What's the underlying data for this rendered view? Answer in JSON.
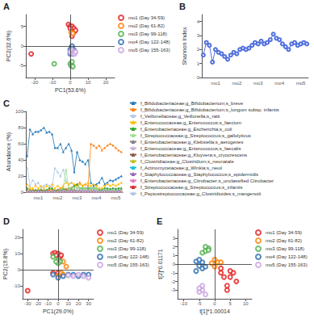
{
  "chart_data": [
    {
      "type": "scatter",
      "title": "A",
      "xlabel": "PC1(53.6%)",
      "ylabel": "PC2(32.6%)",
      "marker": "circle",
      "grid": false,
      "legend": "upper right",
      "xlim": [
        -25,
        25
      ],
      "ylim": [
        -8,
        8
      ],
      "xticks": [
        -20,
        -10,
        0,
        10,
        20
      ],
      "yticks": [
        -5,
        0,
        5
      ],
      "series": [
        {
          "name": "mo1 (Day 34-59)",
          "color": "#e41a1c",
          "x": [
            -22,
            -1,
            0,
            1,
            2,
            1,
            2,
            3,
            0,
            1
          ],
          "y": [
            -2,
            5.5,
            5,
            5,
            4.5,
            3.5,
            3.5,
            4,
            4.5,
            2.5
          ]
        },
        {
          "name": "mo2 (Day 61-82)",
          "color": "#ff7f00",
          "x": [
            0.5,
            1.5
          ],
          "y": [
            3.5,
            3.2
          ]
        },
        {
          "name": "mo3 (Day 99-118)",
          "color": "#4daf4a",
          "x": [
            -9,
            0,
            1,
            0.5,
            1.5
          ],
          "y": [
            -4.5,
            -4.5,
            -4,
            -5,
            -5.2
          ]
        },
        {
          "name": "mo4 (Day 122-148)",
          "color": "#2b6cb0",
          "x": [
            0,
            1,
            1,
            2,
            0,
            0.5,
            1,
            1.5,
            2
          ],
          "y": [
            -1,
            -1.5,
            -0.5,
            -1,
            -2,
            -0.5,
            0,
            -2,
            -1.5
          ]
        },
        {
          "name": "mo5 (Day 155-163)",
          "color": "#c8a0e0",
          "x": [
            0,
            1,
            2,
            1.5,
            2.5,
            3
          ],
          "y": [
            -1.5,
            -1,
            -1.5,
            -2,
            -2,
            -1.5
          ]
        }
      ]
    },
    {
      "type": "line",
      "title": "B",
      "ylabel": "Shannon Index",
      "marker": "circle",
      "grid": false,
      "categories": [
        null,
        null,
        null,
        null,
        "mo1",
        null,
        null,
        null,
        null,
        null,
        null,
        "mo2",
        null,
        null,
        null,
        null,
        null,
        null,
        "mo3",
        null,
        null,
        null,
        null,
        null,
        null,
        "mo4",
        null,
        null,
        null,
        null,
        null,
        null,
        "mo5",
        null,
        null
      ],
      "values": [
        1.6,
        2.5,
        2.3,
        1.1,
        2.0,
        1.8,
        1.7,
        1.5,
        1.3,
        1.6,
        1.8,
        1.7,
        2.0,
        2.1,
        2.0,
        2.1,
        2.3,
        2.5,
        2.4,
        2.6,
        2.4,
        2.5,
        2.7,
        3.1,
        2.8,
        2.7,
        2.4,
        2.2,
        2.0,
        2.4,
        2.5,
        2.3,
        2.4,
        2.5,
        2.4
      ],
      "ylim": [
        0,
        4.5
      ],
      "yticks": [
        0,
        1,
        2,
        3,
        4
      ]
    },
    {
      "type": "line",
      "title": "C",
      "ylabel": "Abundance (%)",
      "marker": "triangle",
      "grid": false,
      "legend": "upper right",
      "categories": [
        null,
        null,
        null,
        null,
        "mo1",
        null,
        null,
        null,
        null,
        null,
        null,
        "mo2",
        null,
        null,
        null,
        null,
        null,
        null,
        "mo3",
        null,
        null,
        null,
        null,
        null,
        null,
        "mo4",
        null,
        null,
        null,
        null,
        null,
        null,
        "mo5",
        null,
        null
      ],
      "ylim": [
        0,
        100
      ],
      "yticks": [
        0,
        20,
        40,
        60,
        80,
        100
      ],
      "series": [
        {
          "name": "f_Bifidobacteriaceae;g_Bifidobacterium;s_breve",
          "color": "#1f77b4",
          "values": [
            45,
            78,
            72,
            75,
            75,
            77,
            80,
            74,
            75,
            72,
            55,
            55,
            60,
            50,
            55,
            60,
            52,
            25,
            50,
            40,
            38,
            35,
            40,
            12,
            8,
            10,
            12,
            18,
            10,
            12,
            15,
            14,
            16,
            18,
            20
          ]
        },
        {
          "name": "f_Bifidobacteriaceae;g_Bifidobacterium;s_longum subsp. infantis",
          "color": "#ff7f0e",
          "values": [
            5,
            3,
            3,
            2,
            3,
            3,
            2,
            2,
            3,
            3,
            2,
            3,
            5,
            5,
            4,
            5,
            6,
            8,
            10,
            12,
            8,
            10,
            8,
            60,
            58,
            55,
            58,
            52,
            55,
            58,
            60,
            58,
            55,
            52,
            50
          ]
        },
        {
          "name": "f_Veillonellaceae;g_Veillonella;s_ratti",
          "color": "#aec7e8",
          "values": [
            30,
            8,
            15,
            10,
            12,
            5,
            8,
            10,
            8,
            6,
            30,
            25,
            20,
            28,
            15,
            10,
            12,
            8,
            6,
            5,
            5,
            6,
            5,
            5,
            4,
            5,
            3,
            2,
            5,
            3,
            2,
            5,
            4,
            3,
            5
          ]
        },
        {
          "name": "f_Enterococcaceae;g_Enterococcus;s_faecium",
          "color": "#ffbb00",
          "values": [
            10,
            5,
            5,
            8,
            5,
            8,
            5,
            8,
            5,
            10,
            5,
            8,
            5,
            8,
            12,
            10,
            12,
            10,
            8,
            10,
            8,
            10,
            12,
            8,
            10,
            8,
            5,
            5,
            8,
            10,
            8,
            10,
            8,
            10,
            12
          ]
        },
        {
          "name": "f_Enterobacteriaceae;g_Escherichia;s_coli",
          "color": "#2ca02c",
          "values": [
            5,
            2,
            2,
            3,
            2,
            3,
            2,
            3,
            5,
            5,
            2,
            3,
            3,
            5,
            3,
            5,
            5,
            8,
            10,
            5,
            5,
            5,
            5,
            5,
            5,
            5,
            3,
            3,
            5,
            5,
            4,
            5,
            4,
            5,
            5
          ]
        },
        {
          "name": "f_Streptococcaceae;g_Streptococcus;s_gallolyticus",
          "color": "#98df8a",
          "values": [
            2,
            1,
            1,
            1,
            1,
            1,
            1,
            1,
            1,
            2,
            1,
            2,
            3,
            5,
            28,
            5,
            6,
            5,
            5,
            5,
            6,
            5,
            3,
            5,
            5,
            5,
            2,
            2,
            3,
            3,
            2,
            2,
            2,
            2,
            2
          ]
        },
        {
          "name": "f_Enterobacteriaceae;g_Klebsiella;s_aerogenes",
          "color": "#7f7f7f",
          "values": [
            2,
            1,
            1,
            1,
            1,
            1,
            1,
            1,
            1,
            2,
            1,
            2,
            2,
            3,
            3,
            2,
            3,
            3,
            2,
            2,
            2,
            2,
            2,
            2,
            2,
            2,
            1,
            1,
            2,
            2,
            1,
            1,
            1,
            2,
            2
          ]
        },
        {
          "name": "f_Enterococcaceae;g_Enterococcus;s_faecalis",
          "color": "#c5b0d5",
          "values": [
            1,
            1,
            1,
            1,
            1,
            1,
            1,
            1,
            1,
            1,
            1,
            1,
            2,
            2,
            2,
            2,
            2,
            2,
            2,
            2,
            2,
            2,
            2,
            2,
            2,
            2,
            1,
            1,
            2,
            1,
            1,
            1,
            1,
            1,
            2
          ]
        },
        {
          "name": "f_Enterobacteriaceae;g_Kluyvera;s_cryocrescens",
          "color": "#8c564b",
          "values": [
            1,
            1,
            1,
            1,
            1,
            1,
            1,
            1,
            1,
            1,
            1,
            1,
            1,
            1,
            1,
            1,
            1,
            1,
            1,
            1,
            1,
            1,
            1,
            1,
            1,
            1,
            1,
            1,
            1,
            1,
            1,
            1,
            1,
            1,
            1
          ]
        },
        {
          "name": "f_Clostridiaceae;g_Clostridium;s_neonatale",
          "color": "#bcbd22",
          "values": [
            1,
            1,
            1,
            1,
            1,
            1,
            1,
            1,
            1,
            1,
            1,
            1,
            1,
            1,
            1,
            1,
            1,
            1,
            1,
            1,
            1,
            1,
            1,
            2,
            1,
            1,
            1,
            1,
            1,
            1,
            1,
            1,
            1,
            1,
            1
          ]
        },
        {
          "name": "f_Actinomycetaceae;g_Winkia;s_neuii",
          "color": "#17becf",
          "values": [
            1,
            1,
            1,
            1,
            1,
            1,
            1,
            1,
            1,
            1,
            1,
            1,
            1,
            1,
            1,
            1,
            1,
            1,
            1,
            1,
            1,
            1,
            1,
            1,
            1,
            1,
            1,
            1,
            1,
            1,
            1,
            1,
            1,
            1,
            1
          ]
        },
        {
          "name": "f_Staphylococcaceae;g_Staphylococcus;s_epidermidis",
          "color": "#9467bd",
          "values": [
            1,
            1,
            1,
            1,
            1,
            1,
            1,
            1,
            1,
            1,
            1,
            1,
            1,
            1,
            1,
            1,
            1,
            1,
            1,
            1,
            1,
            1,
            1,
            1,
            1,
            1,
            1,
            1,
            1,
            1,
            1,
            1,
            1,
            1,
            1
          ]
        },
        {
          "name": "f_Enterobacteriaceae;g_Citrobacter;s_unclassified Citrobacter",
          "color": "#e377c2",
          "values": [
            1,
            1,
            1,
            1,
            1,
            1,
            1,
            1,
            1,
            1,
            1,
            1,
            1,
            1,
            1,
            1,
            1,
            1,
            1,
            1,
            1,
            1,
            1,
            1,
            1,
            1,
            1,
            1,
            1,
            1,
            1,
            1,
            1,
            1,
            1
          ]
        },
        {
          "name": "f_Streptococcaceae;g_Streptococcus;s_infantis",
          "color": "#d62728",
          "values": [
            1,
            1,
            1,
            1,
            1,
            1,
            1,
            1,
            1,
            1,
            1,
            1,
            1,
            1,
            1,
            1,
            1,
            1,
            1,
            1,
            1,
            1,
            1,
            1,
            1,
            1,
            1,
            1,
            1,
            1,
            1,
            1,
            1,
            1,
            1
          ]
        },
        {
          "name": "f_Peptostreptococcaceae;g_Clostridioides;s_mangenotii",
          "color": "#b0c4de",
          "values": [
            1,
            1,
            1,
            1,
            1,
            1,
            1,
            1,
            1,
            1,
            1,
            1,
            1,
            1,
            1,
            1,
            1,
            1,
            1,
            1,
            1,
            1,
            1,
            1,
            1,
            1,
            1,
            1,
            1,
            1,
            1,
            1,
            1,
            1,
            1
          ]
        }
      ]
    },
    {
      "type": "scatter",
      "title": "D",
      "xlabel": "PC1(29.0%)",
      "ylabel": "PC2(19.8%)",
      "marker": "circle",
      "grid": false,
      "legend": "upper right",
      "xlim": [
        -35,
        35
      ],
      "ylim": [
        -18,
        25
      ],
      "xticks": [
        -30,
        -20,
        -10,
        0,
        10,
        20,
        30
      ],
      "yticks": [
        -10,
        0,
        10,
        20
      ],
      "series": [
        {
          "name": "mo1 (Day 34-59)",
          "color": "#e41a1c",
          "x": [
            -30,
            -5,
            -3,
            0,
            2,
            -2,
            3,
            -5,
            0,
            2
          ],
          "y": [
            -13,
            10,
            10.5,
            10,
            8,
            9,
            9,
            -2,
            -2,
            -3
          ]
        },
        {
          "name": "mo2 (Day 61-82)",
          "color": "#ff7f00",
          "x": [
            5,
            8,
            3,
            5,
            0
          ],
          "y": [
            5,
            2,
            -2,
            -3,
            -4
          ]
        },
        {
          "name": "mo3 (Day 99-118)",
          "color": "#4daf4a",
          "x": [
            -5,
            0,
            2,
            0,
            -2
          ],
          "y": [
            8,
            6,
            5,
            4,
            5
          ]
        },
        {
          "name": "mo4 (Day 122-148)",
          "color": "#2b6cb0",
          "x": [
            -5,
            0,
            5,
            10,
            15,
            20,
            25,
            30
          ],
          "y": [
            -3,
            -5,
            -4,
            -3,
            -3,
            -4,
            -3,
            -3
          ]
        },
        {
          "name": "mo5 (Day 155-163)",
          "color": "#c8a0e0",
          "x": [
            10,
            15,
            20,
            25,
            30
          ],
          "y": [
            -3.5,
            -4,
            -3,
            -4,
            -5
          ]
        }
      ]
    },
    {
      "type": "scatter",
      "title": "E",
      "xlabel": "t[1]*1.00014",
      "ylabel": "t[2]*0.01171",
      "marker": "circle",
      "grid": false,
      "legend": "upper right",
      "xlim": [
        -12,
        12
      ],
      "ylim": [
        -4,
        4
      ],
      "xticks": [
        -10,
        -5,
        0,
        5,
        10
      ],
      "yticks": [
        -3,
        -2,
        -1,
        0,
        1,
        2,
        3
      ],
      "series": [
        {
          "name": "mo1 (Day 34-59)",
          "color": "#e41a1c",
          "x": [
            2,
            5,
            4,
            6,
            7,
            3,
            2,
            5,
            4
          ],
          "y": [
            -1,
            -1.5,
            -2.5,
            -1,
            -2,
            -1.5,
            -0.5,
            -0.8,
            -3
          ]
        },
        {
          "name": "mo2 (Day 61-82)",
          "color": "#ff7f00",
          "x": [
            0,
            1,
            -1,
            0,
            2
          ],
          "y": [
            -0.3,
            0.2,
            0.1,
            0.5,
            0.2
          ]
        },
        {
          "name": "mo3 (Day 99-118)",
          "color": "#4daf4a",
          "x": [
            -3,
            -2,
            -4,
            -3,
            -2
          ],
          "y": [
            1.5,
            1.8,
            1.3,
            2.0,
            1.6
          ]
        },
        {
          "name": "mo4 (Day 122-148)",
          "color": "#2b6cb0",
          "x": [
            -5,
            -4,
            -6,
            -4,
            -5,
            -3,
            -6
          ],
          "y": [
            -0.2,
            0.2,
            0.3,
            -0.5,
            0.5,
            -0.3,
            -0.8
          ]
        },
        {
          "name": "mo5 (Day 155-163)",
          "color": "#c8a0e0",
          "x": [
            -4,
            -5,
            -3,
            -5,
            -4
          ],
          "y": [
            -3,
            -3.2,
            -3.5,
            -2.8,
            -2.5
          ]
        }
      ]
    }
  ]
}
